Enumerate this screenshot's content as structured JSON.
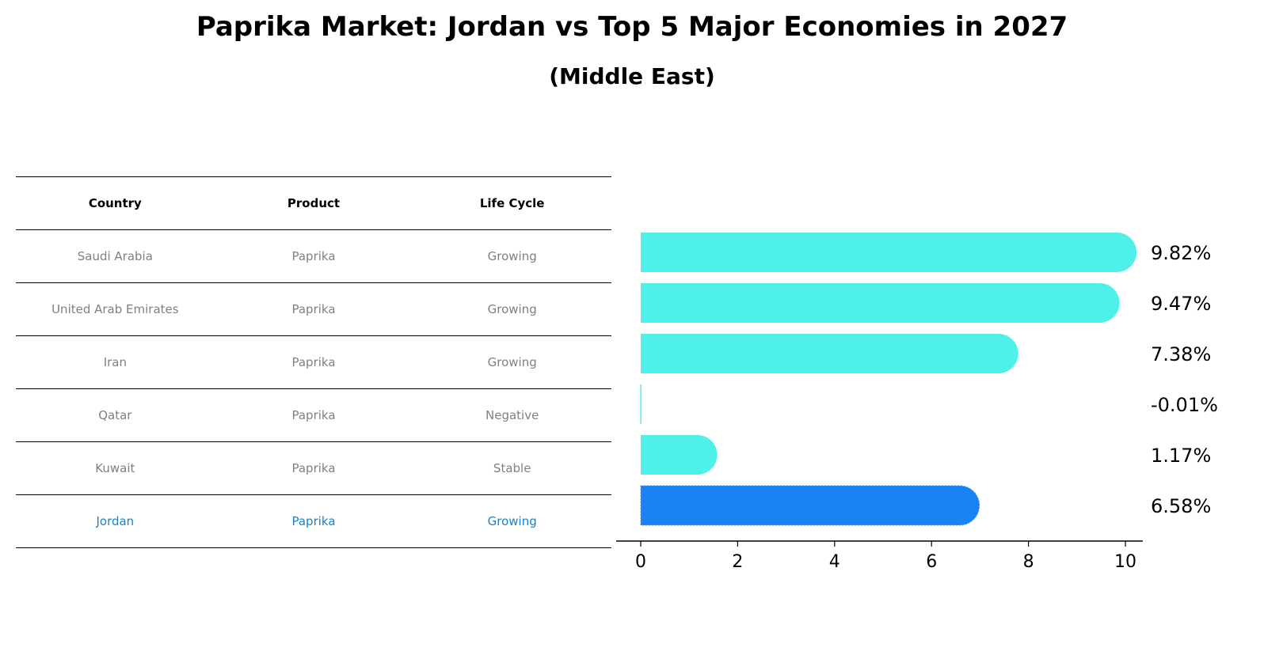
{
  "title": "Paprika Market: Jordan vs Top 5 Major Economies in 2027",
  "subtitle": "(Middle East)",
  "colors": {
    "bar": "#4ff0ea",
    "highlight_bar": "#1a82f2",
    "highlight_text": "#1a82c8",
    "muted_text": "#808080"
  },
  "table": {
    "headers": [
      "Country",
      "Product",
      "Life Cycle"
    ],
    "rows": [
      {
        "country": "Saudi Arabia",
        "product": "Paprika",
        "life_cycle": "Growing",
        "highlight": false
      },
      {
        "country": "United Arab Emirates",
        "product": "Paprika",
        "life_cycle": "Growing",
        "highlight": false
      },
      {
        "country": "Iran",
        "product": "Paprika",
        "life_cycle": "Growing",
        "highlight": false
      },
      {
        "country": "Qatar",
        "product": "Paprika",
        "life_cycle": "Negative",
        "highlight": false
      },
      {
        "country": "Kuwait",
        "product": "Paprika",
        "life_cycle": "Stable",
        "highlight": false
      },
      {
        "country": "Jordan",
        "product": "Paprika",
        "life_cycle": "Growing",
        "highlight": true
      }
    ]
  },
  "chart_data": {
    "type": "bar",
    "orientation": "horizontal",
    "categories": [
      "Saudi Arabia",
      "United Arab Emirates",
      "Iran",
      "Qatar",
      "Kuwait",
      "Jordan"
    ],
    "values": [
      9.82,
      9.47,
      7.38,
      -0.01,
      1.17,
      6.58
    ],
    "value_labels": [
      "9.82%",
      "9.47%",
      "7.38%",
      "-0.01%",
      "1.17%",
      "6.58%"
    ],
    "highlight_category": "Jordan",
    "xlim": [
      -0.5,
      10.3
    ],
    "xticks": [
      0,
      2,
      4,
      6,
      8,
      10
    ],
    "xlabel": "",
    "ylabel": "",
    "grid": false
  }
}
